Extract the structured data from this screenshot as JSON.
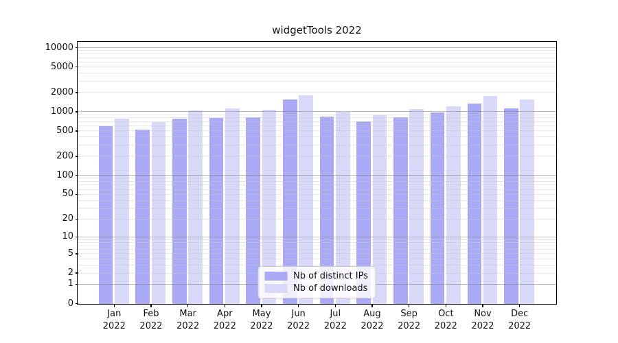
{
  "title": "widgetTools 2022",
  "chart_data": {
    "type": "bar",
    "title": "widgetTools 2022",
    "categories": [
      "Jan 2022",
      "Feb 2022",
      "Mar 2022",
      "Apr 2022",
      "May 2022",
      "Jun 2022",
      "Jul 2022",
      "Aug 2022",
      "Sep 2022",
      "Oct 2022",
      "Nov 2022",
      "Dec 2022"
    ],
    "series": [
      {
        "name": "Nb of distinct IPs",
        "color": "#a9a9f5",
        "values": [
          600,
          530,
          780,
          800,
          820,
          1560,
          840,
          720,
          820,
          990,
          1350,
          1150
        ]
      },
      {
        "name": "Nb of downloads",
        "color": "#d8d8f8",
        "values": [
          780,
          700,
          1050,
          1130,
          1090,
          1810,
          1000,
          890,
          1120,
          1230,
          1770,
          1580
        ]
      }
    ],
    "xlabel": "",
    "ylabel": "",
    "yscale": "log10(1+y)",
    "ylim": [
      0,
      12250
    ],
    "yticks": [
      0,
      1,
      2,
      5,
      10,
      20,
      50,
      100,
      200,
      500,
      1000,
      2000,
      5000,
      10000
    ],
    "grid": true,
    "grid_major_at": [
      1,
      10,
      100,
      1000,
      10000
    ],
    "legend_position": "lower center"
  },
  "colors": {
    "bar_distinct_ips": "#a9a9f5",
    "bar_downloads": "#d8d8f8",
    "grid_major": "#bdbdbd",
    "grid_minor": "#e6e6e6",
    "axis": "#000000",
    "text": "#111111",
    "legend_border": "#cccccc",
    "background": "#ffffff"
  }
}
